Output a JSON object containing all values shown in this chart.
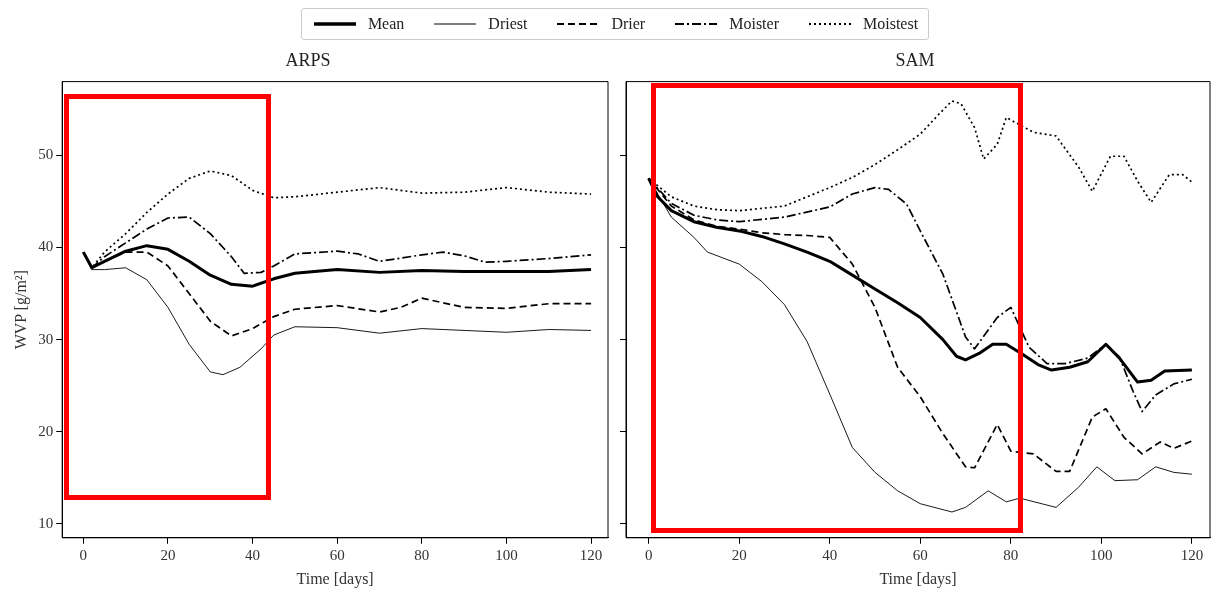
{
  "chart_data": [
    {
      "type": "line",
      "title": "ARPS",
      "xlabel": "Time [days]",
      "ylabel": "WVP [g/m²]",
      "xlim": [
        -5,
        124
      ],
      "xticks": [
        0,
        20,
        40,
        60,
        80,
        100,
        120
      ],
      "ylim": [
        8.5,
        58
      ],
      "yticks": [
        10,
        20,
        30,
        40,
        50
      ],
      "grid": false,
      "legend": "top",
      "marker": "none",
      "series": [
        {
          "name": "Mean",
          "color": "#000000",
          "line_style": "solid",
          "x": [
            0,
            2,
            5,
            10,
            15,
            20,
            25,
            30,
            35,
            40,
            45,
            50,
            60,
            70,
            80,
            90,
            100,
            110,
            120
          ],
          "values": [
            39.5,
            37.8,
            38.5,
            39.6,
            40.2,
            39.8,
            38.5,
            37,
            36,
            35.8,
            36.6,
            37.2,
            37.6,
            37.3,
            37.5,
            37.4,
            37.4,
            37.4,
            37.6
          ]
        },
        {
          "name": "Driest",
          "color": "#000000",
          "line_style": "solid",
          "x": [
            0,
            2,
            5,
            10,
            15,
            20,
            25,
            30,
            33,
            37,
            42,
            45,
            50,
            60,
            70,
            80,
            90,
            100,
            110,
            120
          ],
          "values": [
            39.5,
            37.6,
            37.6,
            37.8,
            36.5,
            33.5,
            29.5,
            26.5,
            26.2,
            27,
            29,
            30.5,
            31.4,
            31.3,
            30.7,
            31.2,
            31,
            30.8,
            31.1,
            31
          ]
        },
        {
          "name": "Drier",
          "color": "#000000",
          "line_style": "dashed",
          "x": [
            0,
            2,
            5,
            10,
            15,
            20,
            25,
            30,
            35,
            40,
            45,
            50,
            60,
            70,
            75,
            80,
            85,
            90,
            100,
            110,
            120
          ],
          "values": [
            39.5,
            37.8,
            38.5,
            39.5,
            39.5,
            38,
            35,
            32,
            30.4,
            31.2,
            32.5,
            33.3,
            33.7,
            33,
            33.5,
            34.5,
            34,
            33.5,
            33.4,
            33.9,
            33.9
          ]
        },
        {
          "name": "Moister",
          "color": "#000000",
          "line_style": "dashdot",
          "x": [
            0,
            2,
            5,
            10,
            15,
            20,
            25,
            30,
            35,
            38,
            42,
            45,
            50,
            60,
            65,
            70,
            80,
            85,
            90,
            95,
            100,
            110,
            120
          ],
          "values": [
            39.5,
            37.8,
            39,
            40.5,
            42,
            43.2,
            43.3,
            41.5,
            39,
            37.2,
            37.3,
            38,
            39.3,
            39.6,
            39.3,
            38.5,
            39.2,
            39.5,
            39.1,
            38.4,
            38.5,
            38.8,
            39.2
          ]
        },
        {
          "name": "Moistest",
          "color": "#000000",
          "line_style": "dotted",
          "x": [
            0,
            2,
            5,
            10,
            15,
            20,
            25,
            30,
            35,
            40,
            45,
            50,
            60,
            70,
            80,
            90,
            100,
            110,
            120
          ],
          "values": [
            39.5,
            37.8,
            39.5,
            41.5,
            43.8,
            45.8,
            47.5,
            48.3,
            47.8,
            46.2,
            45.4,
            45.5,
            46,
            46.5,
            45.9,
            46,
            46.5,
            46,
            45.8
          ]
        }
      ]
    },
    {
      "type": "line",
      "title": "SAM",
      "xlabel": "Time [days]",
      "xlim": [
        -5,
        124
      ],
      "xticks": [
        0,
        20,
        40,
        60,
        80,
        100,
        120
      ],
      "ylim": [
        8.5,
        58
      ],
      "yticks": [
        10,
        20,
        30,
        40,
        50
      ],
      "grid": false,
      "tick_labels": "x",
      "marker": "none",
      "series": [
        {
          "color": "#000000",
          "line_style": "solid",
          "x": [
            0,
            2,
            5,
            10,
            15,
            20,
            25,
            30,
            35,
            40,
            45,
            50,
            55,
            60,
            65,
            68,
            70,
            73,
            76,
            79,
            82,
            86,
            89,
            93,
            97,
            101,
            104,
            108,
            111,
            114,
            120
          ],
          "values": [
            47.5,
            45.5,
            44,
            42.8,
            42.2,
            41.8,
            41.2,
            40.4,
            39.5,
            38.5,
            37,
            35.5,
            34,
            32.4,
            30,
            28.2,
            27.8,
            28.5,
            29.5,
            29.5,
            28.6,
            27.3,
            26.7,
            27,
            27.6,
            29.5,
            28,
            25.4,
            25.6,
            26.6,
            26.7
          ]
        },
        {
          "color": "#000000",
          "line_style": "solid",
          "x": [
            0,
            5,
            10,
            13,
            20,
            25,
            30,
            35,
            40,
            45,
            50,
            55,
            60,
            67,
            70,
            75,
            79,
            82,
            90,
            95,
            99,
            103,
            108,
            112,
            116,
            120
          ],
          "values": [
            47.5,
            43.3,
            41.1,
            39.5,
            38.2,
            36.3,
            33.8,
            29.8,
            24.1,
            18.3,
            15.6,
            13.6,
            12.2,
            11.3,
            11.8,
            13.6,
            12.4,
            12.8,
            11.8,
            14,
            16.2,
            14.7,
            14.8,
            16.2,
            15.6,
            15.4
          ]
        },
        {
          "color": "#000000",
          "line_style": "dashed",
          "x": [
            0,
            5,
            10,
            15,
            20,
            25,
            30,
            35,
            40,
            45,
            50,
            55,
            60,
            65,
            70,
            72,
            77,
            80,
            85,
            90,
            93,
            98,
            101,
            105,
            109,
            113,
            116,
            120
          ],
          "values": [
            47.5,
            44.5,
            43,
            42.3,
            42,
            41.6,
            41.4,
            41.3,
            41.1,
            38.2,
            33.5,
            27,
            23.8,
            19.8,
            16.2,
            16.1,
            20.8,
            17.9,
            17.6,
            15.7,
            15.7,
            21.6,
            22.5,
            19.4,
            17.6,
            18.9,
            18.2,
            19
          ]
        },
        {
          "color": "#000000",
          "line_style": "dashdot",
          "x": [
            0,
            5,
            10,
            15,
            20,
            30,
            40,
            45,
            50,
            53,
            57,
            60,
            65,
            70,
            72,
            77,
            80,
            84,
            88,
            92,
            97,
            101,
            104,
            107,
            109,
            112,
            116,
            120
          ],
          "values": [
            47.5,
            44.8,
            43.5,
            43,
            42.8,
            43.3,
            44.4,
            45.8,
            46.5,
            46.3,
            44.7,
            41.8,
            37.1,
            30.3,
            29,
            32.4,
            33.5,
            29.2,
            27.4,
            27.4,
            28,
            29.5,
            28.1,
            24.4,
            22.2,
            24,
            25.2,
            25.7
          ]
        },
        {
          "color": "#000000",
          "line_style": "dotted",
          "x": [
            0,
            5,
            10,
            15,
            20,
            30,
            40,
            45,
            50,
            55,
            60,
            64,
            67,
            69,
            72,
            74,
            77,
            79,
            85,
            90,
            95,
            98,
            102,
            105,
            108,
            111,
            115,
            118,
            120
          ],
          "values": [
            47.5,
            45.5,
            44.5,
            44.1,
            44,
            44.5,
            46.5,
            47.6,
            49,
            50.6,
            52.3,
            54.4,
            55.9,
            55.6,
            53,
            49.6,
            51.2,
            54.1,
            52.5,
            52.1,
            48.7,
            46.1,
            49.9,
            49.9,
            47.2,
            44.9,
            47.9,
            47.9,
            47.1
          ]
        }
      ]
    }
  ]
}
